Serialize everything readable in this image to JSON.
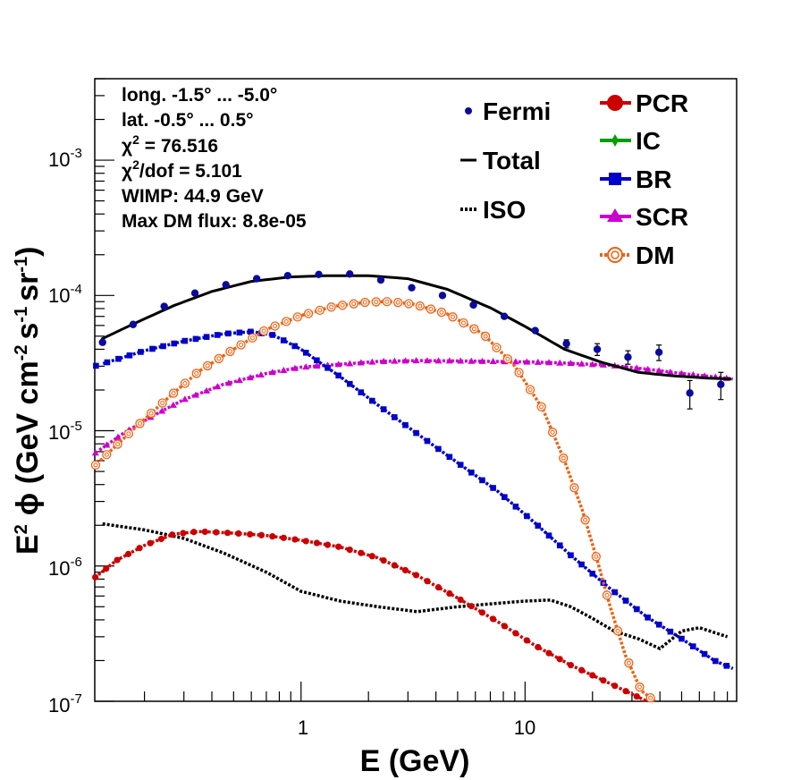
{
  "annotations": {
    "line1": "long. -1.5° ... -5.0°",
    "line2": "lat. -0.5° ... 0.5°",
    "chi2_sym": "χ",
    "chi2_val": " = 76.516",
    "chidof_sym": "χ",
    "chidof_val": "/dof = 5.101",
    "wimp": "WIMP: 44.9 GeV",
    "maxdm": "Max DM flux: 8.8e-05"
  },
  "axes": {
    "x_title": "E (GeV)",
    "x_ticks": [
      "1",
      "10"
    ],
    "y_title_base": "E",
    "y_title_phi": "ϕ (GeV cm",
    "y_title_s": "s",
    "y_title_sr": "sr",
    "y_title_close": ")",
    "sup_2": "2",
    "sup_m2": "-2",
    "sup_m1": "-1",
    "y_tick_base": "10",
    "y_tick_exps": [
      "-7",
      "-6",
      "-5",
      "-4",
      "-3"
    ]
  },
  "legend": {
    "fermi": "Fermi",
    "total": "Total",
    "iso": "ISO",
    "pcr": "PCR",
    "ic": "IC",
    "br": "BR",
    "scr": "SCR",
    "dm": "DM"
  },
  "colors": {
    "fermi": "#0a0a9e",
    "total": "#000000",
    "iso": "#000000",
    "pcr": "#cc0000",
    "ic": "#00a000",
    "br": "#0000cc",
    "scr": "#cc00cc",
    "dm": "#f06010"
  },
  "chart_data": {
    "type": "line",
    "xlabel": "E (GeV)",
    "ylabel": "E² ϕ (GeV cm⁻² s⁻¹ sr⁻¹)",
    "x_scale": "log",
    "y_scale": "log",
    "xlim": [
      0.12,
      88
    ],
    "ylim": [
      1e-07,
      0.004
    ],
    "grid": false,
    "legend": "top-right",
    "fermi": {
      "name": "Fermi",
      "x": [
        0.13,
        0.178,
        0.245,
        0.336,
        0.462,
        0.634,
        0.872,
        1.2,
        1.65,
        2.27,
        3.12,
        4.28,
        5.88,
        8.08,
        11.1,
        15.3,
        21.0,
        28.8,
        39.6,
        54.4,
        74.8
      ],
      "y": [
        4.5e-05,
        6.1e-05,
        8.3e-05,
        0.000104,
        0.00012,
        0.000133,
        0.00014,
        0.000143,
        0.000144,
        0.00013,
        0.000114,
        0.0001,
        8.5e-05,
        7e-05,
        5.5e-05,
        4.4e-05,
        4e-05,
        3.5e-05,
        3.8e-05,
        1.9e-05,
        2.2e-05
      ],
      "yerr": [
        0,
        0,
        0,
        0,
        0,
        0,
        0,
        0,
        0,
        0,
        0,
        0,
        0,
        0,
        0,
        3e-06,
        4e-06,
        4e-06,
        5e-06,
        4.5e-06,
        5e-06
      ]
    },
    "series": [
      {
        "name": "Total",
        "style": "solid",
        "x": [
          0.12,
          0.18,
          0.27,
          0.4,
          0.6,
          0.9,
          1.3,
          2.0,
          3.0,
          4.5,
          7.0,
          10,
          15,
          22,
          32,
          45,
          65,
          88
        ],
        "y": [
          4.5e-05,
          6.2e-05,
          8.4e-05,
          0.000107,
          0.000127,
          0.000137,
          0.00014,
          0.00014,
          0.000133,
          0.000111,
          8.1e-05,
          5.9e-05,
          4e-05,
          3.2e-05,
          2.7e-05,
          2.55e-05,
          2.45e-05,
          2.4e-05
        ]
      },
      {
        "name": "ISO",
        "style": "dotted",
        "x": [
          0.13,
          0.2,
          0.3,
          0.45,
          0.7,
          1.0,
          1.5,
          2.2,
          3.3,
          5.0,
          7.5,
          10,
          13,
          16,
          20,
          25,
          32,
          40,
          50,
          60,
          80
        ],
        "y": [
          2.05e-06,
          1.85e-06,
          1.6e-06,
          1.25e-06,
          9e-07,
          6.5e-07,
          5.5e-07,
          5e-07,
          4.6e-07,
          5e-07,
          5.3e-07,
          5.5e-07,
          5.6e-07,
          5e-07,
          4.1e-07,
          3.3e-07,
          2.9e-07,
          2.45e-07,
          3.3e-07,
          3.5e-07,
          3e-07
        ]
      },
      {
        "name": "PCR",
        "style": "markers",
        "x": [
          0.12,
          0.15,
          0.2,
          0.27,
          0.35,
          0.5,
          0.7,
          1.0,
          1.5,
          2.2,
          3.3,
          5.0,
          7.5,
          11,
          16,
          24,
          35,
          40
        ],
        "y": [
          8.2e-07,
          1.1e-06,
          1.42e-06,
          1.72e-06,
          1.8e-06,
          1.75e-06,
          1.68e-06,
          1.55e-06,
          1.38e-06,
          1.15e-06,
          8.5e-07,
          5.8e-07,
          3.9e-07,
          2.6e-07,
          1.85e-07,
          1.35e-07,
          1e-07,
          9e-08
        ]
      },
      {
        "name": "BR",
        "style": "markers",
        "x": [
          0.12,
          0.2,
          0.3,
          0.45,
          0.6,
          0.75,
          1.0,
          1.5,
          2.2,
          3.3,
          5.0,
          7.5,
          11,
          16,
          24,
          35,
          50,
          70,
          88
        ],
        "y": [
          3e-05,
          3.9e-05,
          4.6e-05,
          5.2e-05,
          5.4e-05,
          5.1e-05,
          4e-05,
          2.5e-05,
          1.55e-05,
          9.5e-06,
          5.8e-06,
          3.6e-06,
          2.1e-06,
          1.2e-06,
          6.8e-07,
          4.2e-07,
          2.9e-07,
          2e-07,
          1.7e-07
        ]
      },
      {
        "name": "SCR",
        "style": "markers",
        "x": [
          0.12,
          0.16,
          0.22,
          0.3,
          0.45,
          0.7,
          1.0,
          1.5,
          2.2,
          3.3,
          5.0,
          7.5,
          11,
          16,
          24,
          35,
          50,
          70,
          88
        ],
        "y": [
          6.8e-06,
          9.5e-06,
          1.3e-05,
          1.7e-05,
          2.2e-05,
          2.65e-05,
          2.95e-05,
          3.1e-05,
          3.25e-05,
          3.3e-05,
          3.28e-05,
          3.25e-05,
          3.22e-05,
          3.15e-05,
          3.05e-05,
          2.85e-05,
          2.65e-05,
          2.5e-05,
          2.4e-05
        ]
      },
      {
        "name": "DM",
        "style": "open-markers",
        "x": [
          0.12,
          0.17,
          0.25,
          0.35,
          0.5,
          0.7,
          1.0,
          1.4,
          2.0,
          2.5,
          3.2,
          4.5,
          6.5,
          9.0,
          12,
          15,
          18,
          21,
          24,
          28,
          33,
          38
        ],
        "y": [
          5.5e-06,
          9.5e-06,
          1.7e-05,
          2.75e-05,
          4e-05,
          5.6e-05,
          7.1e-05,
          8.3e-05,
          8.95e-05,
          9e-05,
          8.6e-05,
          7.3e-05,
          5.2e-05,
          3e-05,
          1.45e-05,
          6e-06,
          2.6e-06,
          1.1e-06,
          5e-07,
          2.2e-07,
          1.2e-07,
          1e-07
        ]
      }
    ],
    "legend_entries": [
      "Fermi",
      "Total",
      "ISO",
      "PCR",
      "IC",
      "BR",
      "SCR",
      "DM"
    ]
  }
}
